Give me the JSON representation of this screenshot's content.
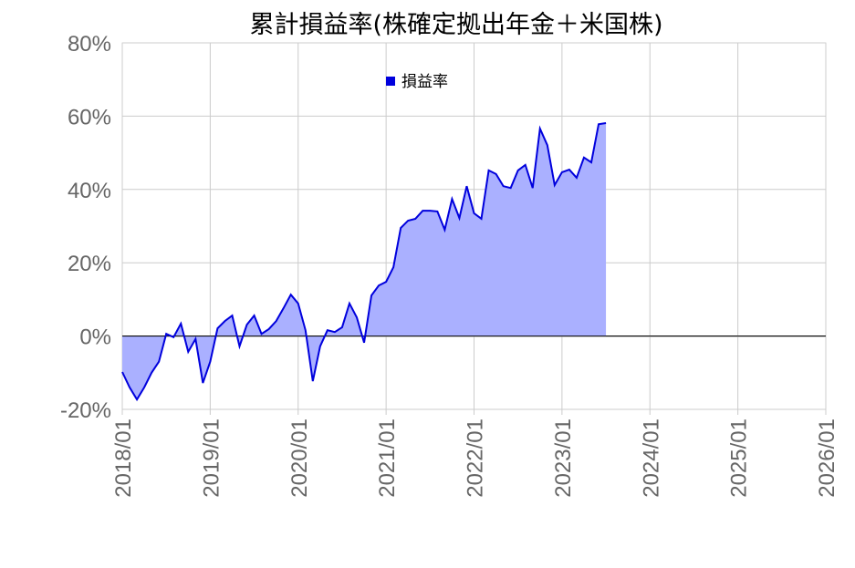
{
  "chart_data": {
    "type": "area",
    "title": "累計損益率(株確定拠出年金＋米国株)",
    "x": [
      "2018/01",
      "2018/02",
      "2018/03",
      "2018/04",
      "2018/05",
      "2018/06",
      "2018/07",
      "2018/08",
      "2018/09",
      "2018/10",
      "2018/11",
      "2018/12",
      "2019/01",
      "2019/02",
      "2019/03",
      "2019/04",
      "2019/05",
      "2019/06",
      "2019/07",
      "2019/08",
      "2019/09",
      "2019/10",
      "2019/11",
      "2019/12",
      "2020/01",
      "2020/02",
      "2020/03",
      "2020/04",
      "2020/05",
      "2020/06",
      "2020/07",
      "2020/08",
      "2020/09",
      "2020/10",
      "2020/11",
      "2020/12",
      "2021/01",
      "2021/02",
      "2021/03",
      "2021/04",
      "2021/05",
      "2021/06",
      "2021/07",
      "2021/08",
      "2021/09",
      "2021/10",
      "2021/11",
      "2021/12",
      "2022/01",
      "2022/02",
      "2022/03",
      "2022/04",
      "2022/05",
      "2022/06",
      "2022/07",
      "2022/08",
      "2022/09",
      "2022/10",
      "2022/11",
      "2022/12",
      "2023/01",
      "2023/02",
      "2023/03",
      "2023/04",
      "2023/05",
      "2023/06",
      "2023/07"
    ],
    "series": [
      {
        "name": "損益率",
        "color": "#0000dd",
        "fill": "#aab0ff",
        "values": [
          -9.8,
          -14,
          -17.3,
          -14,
          -10,
          -7,
          0.6,
          -0.3,
          3.4,
          -4.3,
          -0.8,
          -12.8,
          -7,
          2.1,
          4.1,
          5.6,
          -2.8,
          3.1,
          5.6,
          0.6,
          1.9,
          4.1,
          7.6,
          11.3,
          8.9,
          1.6,
          -12.3,
          -2.8,
          1.6,
          1.1,
          2.4,
          8.9,
          5.1,
          -1.8,
          11.1,
          13.8,
          14.8,
          18.8,
          29.5,
          31.5,
          32,
          34.2,
          34.2,
          34,
          29,
          37.4,
          32.2,
          40.9,
          33.5,
          32,
          45.2,
          44.2,
          40.9,
          40.4,
          45.2,
          46.7,
          40.4,
          56.6,
          52.1,
          41.2,
          44.7,
          45.4,
          43.2,
          48.7,
          47.4,
          57.8,
          58.1
        ]
      }
    ],
    "xlim": [
      "2018/01",
      "2026/01"
    ],
    "xticks": [
      "2018/01",
      "2019/01",
      "2020/01",
      "2021/01",
      "2022/01",
      "2023/01",
      "2024/01",
      "2025/01",
      "2026/01"
    ],
    "ylim": [
      -20,
      80
    ],
    "yticks": [
      {
        "value": -20,
        "label": "-20%"
      },
      {
        "value": 0,
        "label": "0%"
      },
      {
        "value": 20,
        "label": "20%"
      },
      {
        "value": 40,
        "label": "40%"
      },
      {
        "value": 60,
        "label": "60%"
      },
      {
        "value": 80,
        "label": "80%"
      }
    ],
    "grid": true
  }
}
